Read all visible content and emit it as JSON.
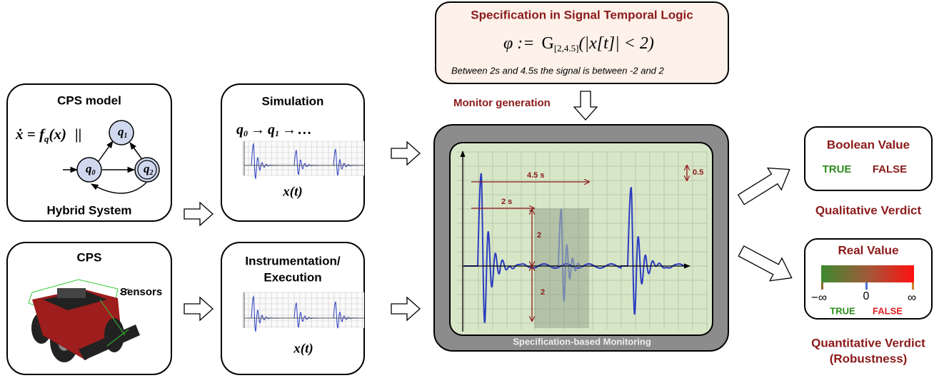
{
  "cps_model": {
    "title": "CPS model",
    "subtitle": "Hybrid System",
    "equation": {
      "lhs": "ẋ = f",
      "sub": "q",
      "rhs": "(x)",
      "sep": "||"
    },
    "states": [
      {
        "name": "q",
        "index": "0"
      },
      {
        "name": "q",
        "index": "1"
      },
      {
        "name": "q",
        "index": "2"
      }
    ]
  },
  "cps": {
    "title": "CPS",
    "sensors": "Sensors"
  },
  "simulation": {
    "title": "Simulation",
    "trace": [
      {
        "name": "q",
        "index": "0"
      },
      {
        "name": "q",
        "index": "1"
      }
    ],
    "arrow": "→",
    "ellipsis": "…",
    "signal": "x(t)"
  },
  "instrumentation": {
    "title_lines": [
      "Instrumentation/",
      "Execution"
    ],
    "signal": "x(t)"
  },
  "specification": {
    "title": "Specification in Signal Temporal Logic",
    "formula": {
      "phi": "φ :=",
      "op": "G",
      "interval": "[2,4.5]",
      "body": "(|x[t]| < 2)"
    },
    "description": "Between 2s and 4.5s the signal is between -2 and 2"
  },
  "monitor_generation": "Monitor generation",
  "monitor": {
    "caption": "Specification-based Monitoring",
    "annotations": {
      "horizon": "4.5 s",
      "start": "2 s",
      "upper": "2",
      "lower": "2",
      "scale": "0.5"
    }
  },
  "qualitative": {
    "box_title": "Boolean Value",
    "true": "TRUE",
    "false": "FALSE",
    "label": "Qualitative Verdict"
  },
  "quantitative": {
    "box_title": "Real Value",
    "neg_inf": "−∞",
    "zero": "0",
    "pos_inf": "∞",
    "true": "TRUE",
    "false": "FALSE",
    "label_lines": [
      "Quantitative Verdict",
      "(Robustness)"
    ]
  }
}
